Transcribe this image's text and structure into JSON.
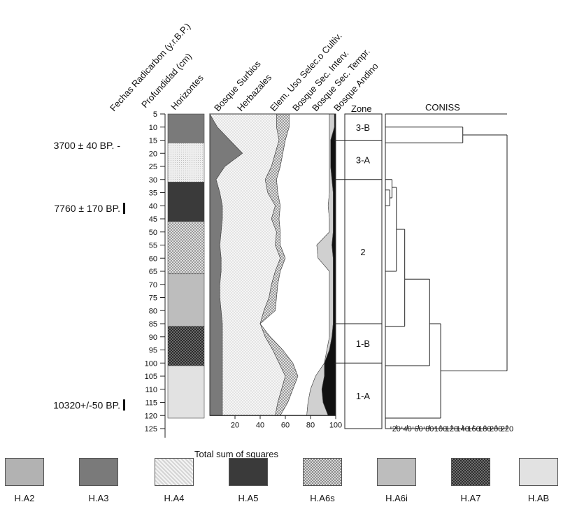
{
  "chart_data": {
    "type": "area",
    "axis_titles": {
      "dates": "Fechas Radicarbon (y.r.B.P.)",
      "depth": "Profundidad (cm)",
      "horizons": "Horizontes",
      "zone": "Zone",
      "coniss": "CONISS"
    },
    "depth_ticks": [
      "5",
      "10",
      "15",
      "20",
      "25",
      "30",
      "35",
      "40",
      "45",
      "50",
      "55",
      "60",
      "65",
      "70",
      "75",
      "80",
      "85",
      "90",
      "95",
      "100",
      "105",
      "110",
      "115",
      "120",
      "125"
    ],
    "dates": [
      {
        "label": "3700 ± 40 BP. -",
        "depth": 17
      },
      {
        "label": "7760 ± 170 BP.",
        "depth": 41
      },
      {
        "label": "10320+/-50 BP.",
        "depth": 116
      }
    ],
    "horizons": [
      {
        "name": "H.A3",
        "top": 5,
        "bottom": 16
      },
      {
        "name": "H.A4",
        "top": 16,
        "bottom": 31
      },
      {
        "name": "H.A5",
        "top": 31,
        "bottom": 46
      },
      {
        "name": "H.A6s",
        "top": 46,
        "bottom": 66
      },
      {
        "name": "H.A6i",
        "top": 66,
        "bottom": 86
      },
      {
        "name": "H.A7",
        "top": 86,
        "bottom": 101
      },
      {
        "name": "H.AB",
        "top": 101,
        "bottom": 121
      }
    ],
    "series_labels": [
      "Bosque Surbios",
      "Herbazales",
      "Elem. Uso Selec.o Cultiv.",
      "Bosque Sec. Interv.",
      "Bosque Sec. Tempr.",
      "Bosque Andino"
    ],
    "depths": [
      5,
      10,
      15,
      20,
      25,
      30,
      35,
      40,
      45,
      50,
      55,
      60,
      65,
      70,
      75,
      80,
      85,
      90,
      95,
      100,
      105,
      110,
      115,
      120
    ],
    "cumulative_boundaries": [
      [
        0,
        0,
        0,
        0,
        0,
        0,
        0,
        0,
        0,
        0,
        0,
        0,
        0,
        0,
        0,
        0,
        0,
        0,
        0,
        0,
        0,
        0,
        0,
        0
      ],
      [
        0,
        6,
        16,
        26,
        12,
        5,
        8,
        10,
        10,
        9,
        8,
        9,
        9,
        8,
        8,
        9,
        10,
        10,
        10,
        10,
        10,
        10,
        10,
        10
      ],
      [
        53,
        53,
        55,
        52,
        49,
        44,
        46,
        52,
        49,
        53,
        52,
        56,
        52,
        49,
        47,
        43,
        40,
        44,
        50,
        55,
        60,
        57,
        54,
        52
      ],
      [
        63,
        63,
        60,
        58,
        56,
        53,
        54,
        56,
        55,
        56,
        56,
        60,
        56,
        54,
        53,
        52,
        40,
        48,
        58,
        66,
        70,
        66,
        62,
        56
      ],
      [
        95,
        95,
        95,
        95,
        95,
        95,
        95,
        94,
        95,
        95,
        85,
        86,
        95,
        95,
        95,
        95,
        95,
        95,
        93,
        91,
        84,
        80,
        78,
        77
      ],
      [
        99,
        99,
        96,
        96,
        96,
        97,
        98,
        98,
        98,
        98,
        97,
        98,
        98,
        98,
        98,
        98,
        98,
        97,
        95,
        91,
        91,
        89,
        90,
        94
      ],
      [
        100,
        100,
        100,
        100,
        100,
        100,
        100,
        100,
        100,
        100,
        100,
        100,
        100,
        100,
        100,
        100,
        100,
        100,
        100,
        100,
        100,
        100,
        100,
        100
      ]
    ],
    "percent_axis": {
      "ticks": [
        "20",
        "40",
        "60",
        "80",
        "100"
      ],
      "max": 100
    },
    "zones": [
      {
        "label": "3-B",
        "top": 5,
        "bottom": 15
      },
      {
        "label": "3-A",
        "top": 15,
        "bottom": 30
      },
      {
        "label": "2",
        "top": 30,
        "bottom": 85
      },
      {
        "label": "1-B",
        "top": 85,
        "bottom": 100
      },
      {
        "label": "1-A",
        "top": 100,
        "bottom": 125
      }
    ],
    "coniss": {
      "ticks": [
        "20",
        "40",
        "60",
        "80",
        "100",
        "120",
        "140",
        "160",
        "180",
        "200",
        "220"
      ],
      "xlabel": "Total sum of squares",
      "max": 220,
      "segments": [
        [
          0,
          10,
          140,
          10
        ],
        [
          0,
          16,
          140,
          16
        ],
        [
          140,
          10,
          140,
          16
        ],
        [
          140,
          13,
          220,
          13
        ],
        [
          0,
          34,
          8,
          34
        ],
        [
          0,
          40,
          8,
          40
        ],
        [
          8,
          34,
          8,
          40
        ],
        [
          8,
          37,
          12,
          37
        ],
        [
          0,
          30,
          12,
          30
        ],
        [
          12,
          30,
          12,
          37
        ],
        [
          12,
          33,
          20,
          33
        ],
        [
          0,
          65,
          20,
          65
        ],
        [
          20,
          33,
          20,
          65
        ],
        [
          20,
          49,
          35,
          49
        ],
        [
          0,
          86,
          35,
          86
        ],
        [
          35,
          49,
          35,
          86
        ],
        [
          35,
          68,
          80,
          68
        ],
        [
          0,
          101,
          80,
          101
        ],
        [
          80,
          68,
          80,
          101
        ],
        [
          80,
          85,
          100,
          85
        ],
        [
          0,
          121,
          100,
          121
        ],
        [
          100,
          85,
          100,
          121
        ],
        [
          100,
          103,
          220,
          103
        ],
        [
          220,
          13,
          220,
          103
        ]
      ]
    }
  },
  "legend": [
    {
      "label": "H.A2"
    },
    {
      "label": "H.A3"
    },
    {
      "label": "H.A4"
    },
    {
      "label": "H.A5"
    },
    {
      "label": "H.A6s"
    },
    {
      "label": "H.A6i"
    },
    {
      "label": "H.A7"
    },
    {
      "label": "H.AB"
    }
  ]
}
